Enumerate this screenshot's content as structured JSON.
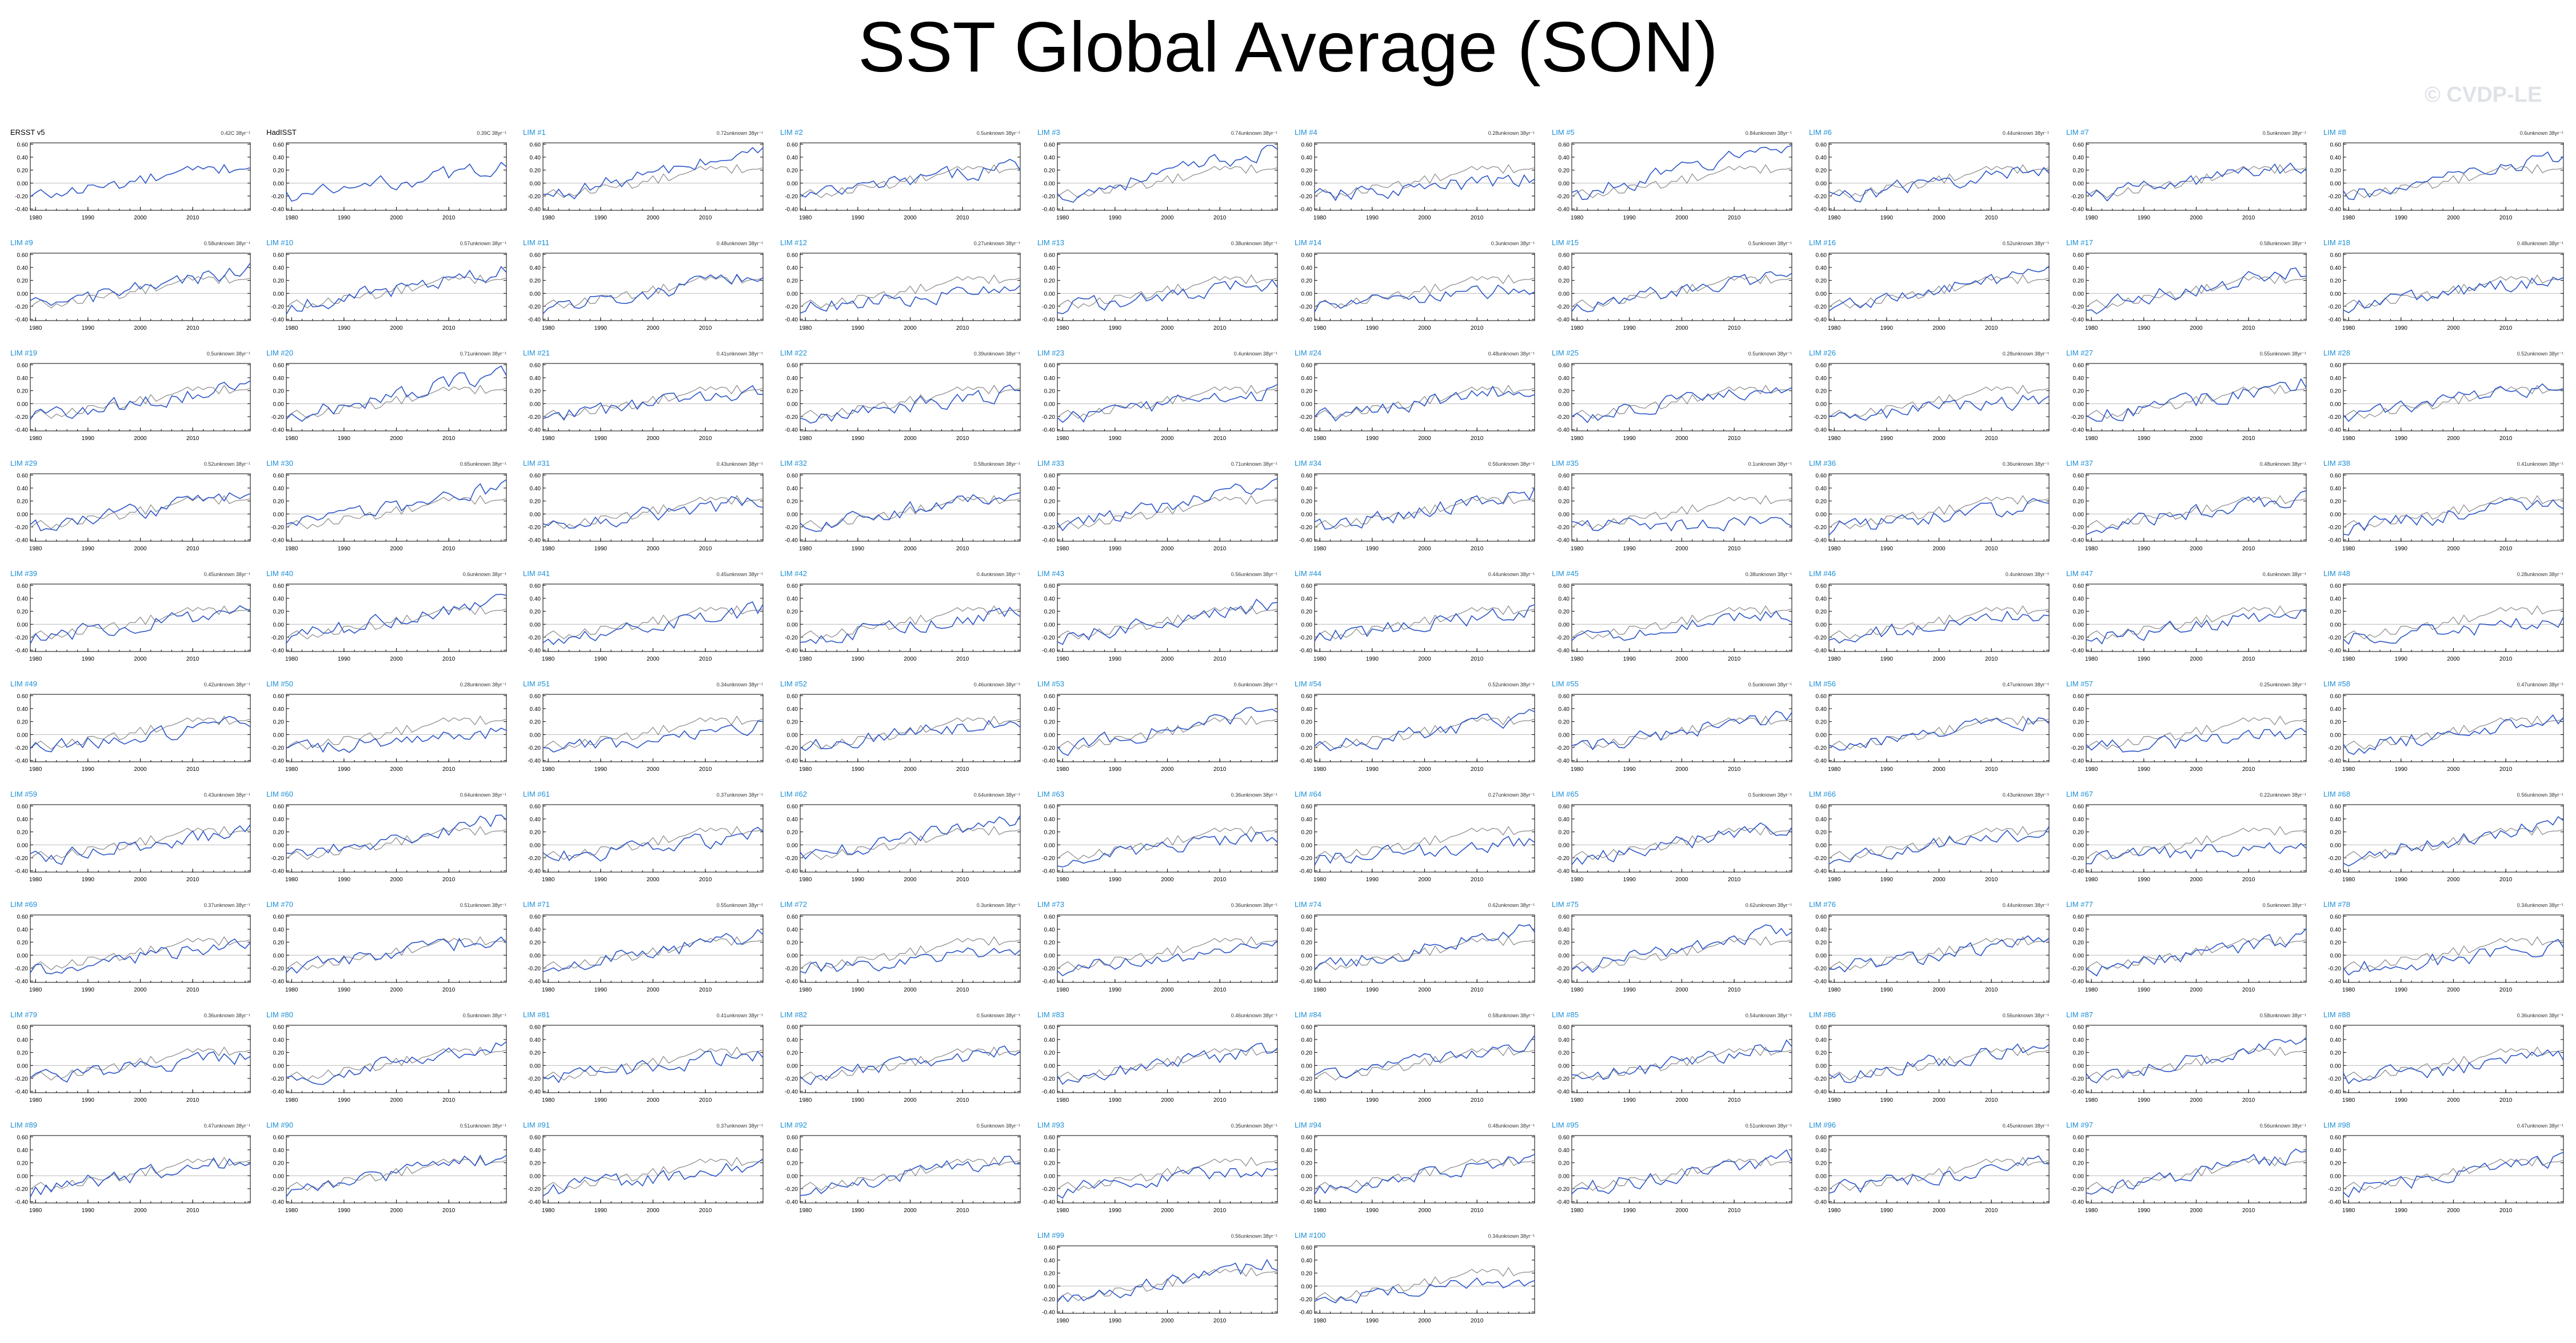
{
  "title": "SST Global Average (SON)",
  "watermark": "© CVDP-LE",
  "colors": {
    "observation_line": "#888888",
    "member_line": "#2b55c8",
    "observation_label": "#000000",
    "member_label": "#1a8fd6",
    "zero_line": "#bbbbbb"
  },
  "chart_data": {
    "type": "line",
    "layout": "small-multiples",
    "x_ticks": [
      1980,
      1990,
      2000,
      2010
    ],
    "xlim": [
      1979,
      2021
    ],
    "ylim": [
      -0.42,
      0.62
    ],
    "y_ticks": [
      "-0.40",
      "-0.20",
      "0.00",
      "0.20",
      "0.40",
      "0.60"
    ],
    "legend": "none",
    "grid": false,
    "units_label": "°C",
    "observations_note": "First panel row: ERSST v5 and HadISST observations; remaining panels: LIM ensemble members (blue) overlaid on ERSST v5 (gray).",
    "panels": [
      {
        "label": "ERSST v5",
        "trend": "0.42C 38yr⁻¹",
        "observation": true
      },
      {
        "label": "HadISST",
        "trend": "0.39C 38yr⁻¹",
        "observation": true
      },
      {
        "label": "LIM #1",
        "trend": "0.72unknown 38yr⁻¹"
      },
      {
        "label": "LIM #2",
        "trend": "0.5unknown 38yr⁻¹"
      },
      {
        "label": "LIM #3",
        "trend": "0.74unknown 38yr⁻¹"
      },
      {
        "label": "LIM #4",
        "trend": "0.28unknown 38yr⁻¹"
      },
      {
        "label": "LIM #5",
        "trend": "0.84unknown 38yr⁻¹"
      },
      {
        "label": "LIM #6",
        "trend": "0.44unknown 38yr⁻¹"
      },
      {
        "label": "LIM #7",
        "trend": "0.5unknown 38yr⁻¹"
      },
      {
        "label": "LIM #8",
        "trend": "0.6unknown 38yr⁻¹"
      },
      {
        "label": "LIM #9",
        "trend": "0.58unknown 38yr⁻¹"
      },
      {
        "label": "LIM #10",
        "trend": "0.57unknown 38yr⁻¹"
      },
      {
        "label": "LIM #11",
        "trend": "0.48unknown 38yr⁻¹"
      },
      {
        "label": "LIM #12",
        "trend": "0.27unknown 38yr⁻¹"
      },
      {
        "label": "LIM #13",
        "trend": "0.38unknown 38yr⁻¹"
      },
      {
        "label": "LIM #14",
        "trend": "0.3unknown 38yr⁻¹"
      },
      {
        "label": "LIM #15",
        "trend": "0.5unknown 38yr⁻¹"
      },
      {
        "label": "LIM #16",
        "trend": "0.52unknown 38yr⁻¹"
      },
      {
        "label": "LIM #17",
        "trend": "0.58unknown 38yr⁻¹"
      },
      {
        "label": "LIM #18",
        "trend": "0.48unknown 38yr⁻¹"
      },
      {
        "label": "LIM #19",
        "trend": "0.5unknown 38yr⁻¹"
      },
      {
        "label": "LIM #20",
        "trend": "0.71unknown 38yr⁻¹"
      },
      {
        "label": "LIM #21",
        "trend": "0.41unknown 38yr⁻¹"
      },
      {
        "label": "LIM #22",
        "trend": "0.39unknown 38yr⁻¹"
      },
      {
        "label": "LIM #23",
        "trend": "0.4unknown 38yr⁻¹"
      },
      {
        "label": "LIM #24",
        "trend": "0.48unknown 38yr⁻¹"
      },
      {
        "label": "LIM #25",
        "trend": "0.5unknown 38yr⁻¹"
      },
      {
        "label": "LIM #26",
        "trend": "0.28unknown 38yr⁻¹"
      },
      {
        "label": "LIM #27",
        "trend": "0.55unknown 38yr⁻¹"
      },
      {
        "label": "LIM #28",
        "trend": "0.52unknown 38yr⁻¹"
      },
      {
        "label": "LIM #29",
        "trend": "0.52unknown 38yr⁻¹"
      },
      {
        "label": "LIM #30",
        "trend": "0.65unknown 38yr⁻¹"
      },
      {
        "label": "LIM #31",
        "trend": "0.43unknown 38yr⁻¹"
      },
      {
        "label": "LIM #32",
        "trend": "0.58unknown 38yr⁻¹"
      },
      {
        "label": "LIM #33",
        "trend": "0.71unknown 38yr⁻¹"
      },
      {
        "label": "LIM #34",
        "trend": "0.56unknown 38yr⁻¹"
      },
      {
        "label": "LIM #35",
        "trend": "0.1unknown 38yr⁻¹"
      },
      {
        "label": "LIM #36",
        "trend": "0.36unknown 38yr⁻¹"
      },
      {
        "label": "LIM #37",
        "trend": "0.48unknown 38yr⁻¹"
      },
      {
        "label": "LIM #38",
        "trend": "0.41unknown 38yr⁻¹"
      },
      {
        "label": "LIM #39",
        "trend": "0.45unknown 38yr⁻¹"
      },
      {
        "label": "LIM #40",
        "trend": "0.6unknown 38yr⁻¹"
      },
      {
        "label": "LIM #41",
        "trend": "0.45unknown 38yr⁻¹"
      },
      {
        "label": "LIM #42",
        "trend": "0.4unknown 38yr⁻¹"
      },
      {
        "label": "LIM #43",
        "trend": "0.56unknown 38yr⁻¹"
      },
      {
        "label": "LIM #44",
        "trend": "0.44unknown 38yr⁻¹"
      },
      {
        "label": "LIM #45",
        "trend": "0.38unknown 38yr⁻¹"
      },
      {
        "label": "LIM #46",
        "trend": "0.4unknown 38yr⁻¹"
      },
      {
        "label": "LIM #47",
        "trend": "0.4unknown 38yr⁻¹"
      },
      {
        "label": "LIM #48",
        "trend": "0.28unknown 38yr⁻¹"
      },
      {
        "label": "LIM #49",
        "trend": "0.42unknown 38yr⁻¹"
      },
      {
        "label": "LIM #50",
        "trend": "0.28unknown 38yr⁻¹"
      },
      {
        "label": "LIM #51",
        "trend": "0.34unknown 38yr⁻¹"
      },
      {
        "label": "LIM #52",
        "trend": "0.46unknown 38yr⁻¹"
      },
      {
        "label": "LIM #53",
        "trend": "0.6unknown 38yr⁻¹"
      },
      {
        "label": "LIM #54",
        "trend": "0.52unknown 38yr⁻¹"
      },
      {
        "label": "LIM #55",
        "trend": "0.5unknown 38yr⁻¹"
      },
      {
        "label": "LIM #56",
        "trend": "0.47unknown 38yr⁻¹"
      },
      {
        "label": "LIM #57",
        "trend": "0.25unknown 38yr⁻¹"
      },
      {
        "label": "LIM #58",
        "trend": "0.47unknown 38yr⁻¹"
      },
      {
        "label": "LIM #59",
        "trend": "0.43unknown 38yr⁻¹"
      },
      {
        "label": "LIM #60",
        "trend": "0.64unknown 38yr⁻¹"
      },
      {
        "label": "LIM #61",
        "trend": "0.37unknown 38yr⁻¹"
      },
      {
        "label": "LIM #62",
        "trend": "0.64unknown 38yr⁻¹"
      },
      {
        "label": "LIM #63",
        "trend": "0.36unknown 38yr⁻¹"
      },
      {
        "label": "LIM #64",
        "trend": "0.27unknown 38yr⁻¹"
      },
      {
        "label": "LIM #65",
        "trend": "0.5unknown 38yr⁻¹"
      },
      {
        "label": "LIM #66",
        "trend": "0.43unknown 38yr⁻¹"
      },
      {
        "label": "LIM #67",
        "trend": "0.22unknown 38yr⁻¹"
      },
      {
        "label": "LIM #68",
        "trend": "0.56unknown 38yr⁻¹"
      },
      {
        "label": "LIM #69",
        "trend": "0.37unknown 38yr⁻¹"
      },
      {
        "label": "LIM #70",
        "trend": "0.51unknown 38yr⁻¹"
      },
      {
        "label": "LIM #71",
        "trend": "0.55unknown 38yr⁻¹"
      },
      {
        "label": "LIM #72",
        "trend": "0.3unknown 38yr⁻¹"
      },
      {
        "label": "LIM #73",
        "trend": "0.36unknown 38yr⁻¹"
      },
      {
        "label": "LIM #74",
        "trend": "0.62unknown 38yr⁻¹"
      },
      {
        "label": "LIM #75",
        "trend": "0.62unknown 38yr⁻¹"
      },
      {
        "label": "LIM #76",
        "trend": "0.44unknown 38yr⁻¹"
      },
      {
        "label": "LIM #77",
        "trend": "0.5unknown 38yr⁻¹"
      },
      {
        "label": "LIM #78",
        "trend": "0.34unknown 38yr⁻¹"
      },
      {
        "label": "LIM #79",
        "trend": "0.36unknown 38yr⁻¹"
      },
      {
        "label": "LIM #80",
        "trend": "0.5unknown 38yr⁻¹"
      },
      {
        "label": "LIM #81",
        "trend": "0.41unknown 38yr⁻¹"
      },
      {
        "label": "LIM #82",
        "trend": "0.5unknown 38yr⁻¹"
      },
      {
        "label": "LIM #83",
        "trend": "0.46unknown 38yr⁻¹"
      },
      {
        "label": "LIM #84",
        "trend": "0.58unknown 38yr⁻¹"
      },
      {
        "label": "LIM #85",
        "trend": "0.54unknown 38yr⁻¹"
      },
      {
        "label": "LIM #86",
        "trend": "0.56unknown 38yr⁻¹"
      },
      {
        "label": "LIM #87",
        "trend": "0.58unknown 38yr⁻¹"
      },
      {
        "label": "LIM #88",
        "trend": "0.36unknown 38yr⁻¹"
      },
      {
        "label": "LIM #89",
        "trend": "0.47unknown 38yr⁻¹"
      },
      {
        "label": "LIM #90",
        "trend": "0.51unknown 38yr⁻¹"
      },
      {
        "label": "LIM #91",
        "trend": "0.37unknown 38yr⁻¹"
      },
      {
        "label": "LIM #92",
        "trend": "0.5unknown 38yr⁻¹"
      },
      {
        "label": "LIM #93",
        "trend": "0.35unknown 38yr⁻¹"
      },
      {
        "label": "LIM #94",
        "trend": "0.48unknown 38yr⁻¹"
      },
      {
        "label": "LIM #95",
        "trend": "0.51unknown 38yr⁻¹"
      },
      {
        "label": "LIM #96",
        "trend": "0.45unknown 38yr⁻¹"
      },
      {
        "label": "LIM #97",
        "trend": "0.56unknown 38yr⁻¹"
      },
      {
        "label": "LIM #98",
        "trend": "0.47unknown 38yr⁻¹"
      },
      {
        "label": "LIM #99",
        "trend": "0.56unknown 38yr⁻¹"
      },
      {
        "label": "LIM #100",
        "trend": "0.34unknown 38yr⁻¹"
      }
    ]
  }
}
